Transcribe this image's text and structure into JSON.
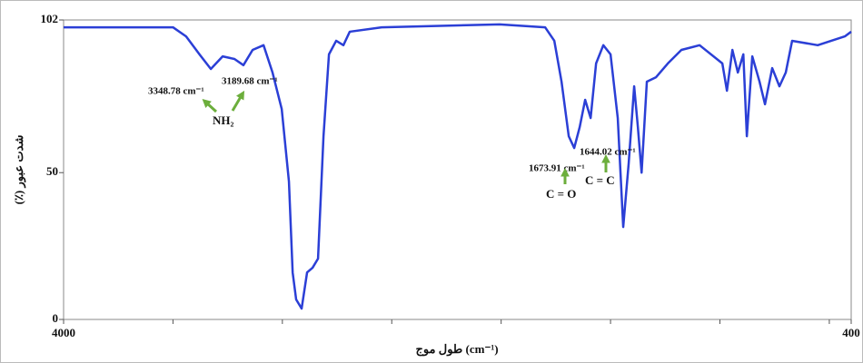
{
  "chart_data": {
    "type": "line",
    "ylabel": "شدت عبور (٪)",
    "xlabel": "طول موج (cm⁻¹)",
    "xlim": [
      4000,
      400
    ],
    "ylim": [
      0,
      102
    ],
    "xticks": [
      4000,
      400
    ],
    "xticks_minor": [
      3500,
      3000,
      2500,
      2000,
      1500,
      1000,
      500
    ],
    "yticks": [
      0,
      50,
      102
    ],
    "series": [
      {
        "color": "#2b3fd6",
        "x": [
          4000,
          3500,
          3440,
          3377,
          3327,
          3273,
          3219,
          3178,
          3136,
          3086,
          3045,
          3003,
          2970,
          2953,
          2937,
          2912,
          2887,
          2862,
          2837,
          2812,
          2787,
          2754,
          2721,
          2692,
          2546,
          2007,
          1799,
          1757,
          1724,
          1691,
          1666,
          1641,
          1616,
          1591,
          1566,
          1533,
          1500,
          1467,
          1442,
          1417,
          1392,
          1375,
          1358,
          1334,
          1292,
          1238,
          1176,
          1093,
          989,
          968,
          943,
          918,
          893,
          877,
          852,
          819,
          794,
          761,
          728,
          699,
          670,
          553,
          491,
          429,
          400
        ],
        "values": [
          99.5,
          99.5,
          96.4,
          90.1,
          85.3,
          89.6,
          88.7,
          86.6,
          91.8,
          93.4,
          84.1,
          71.7,
          47,
          16,
          6.8,
          3.7,
          16,
          17.6,
          20.7,
          62.4,
          90.3,
          94.9,
          93.4,
          98,
          99.5,
          100.5,
          99.5,
          94.9,
          81,
          62.4,
          58.4,
          65.5,
          74.8,
          68.6,
          87.2,
          93.4,
          90.3,
          68.6,
          31.5,
          53.2,
          79.4,
          65.5,
          50,
          81,
          82.5,
          87.2,
          91.8,
          93.4,
          87.2,
          77.9,
          91.8,
          84.1,
          90.3,
          62.4,
          89.6,
          81,
          73.3,
          85.6,
          79.4,
          84.1,
          94.9,
          93.4,
          94.9,
          96.4,
          98
        ]
      }
    ],
    "annotations": [
      "3348.78 cm⁻¹",
      "3189.68 cm⁻¹",
      "NH₂",
      "1673.91 cm⁻¹",
      "1644.02 cm⁻¹",
      "C = O",
      "C = C"
    ]
  }
}
